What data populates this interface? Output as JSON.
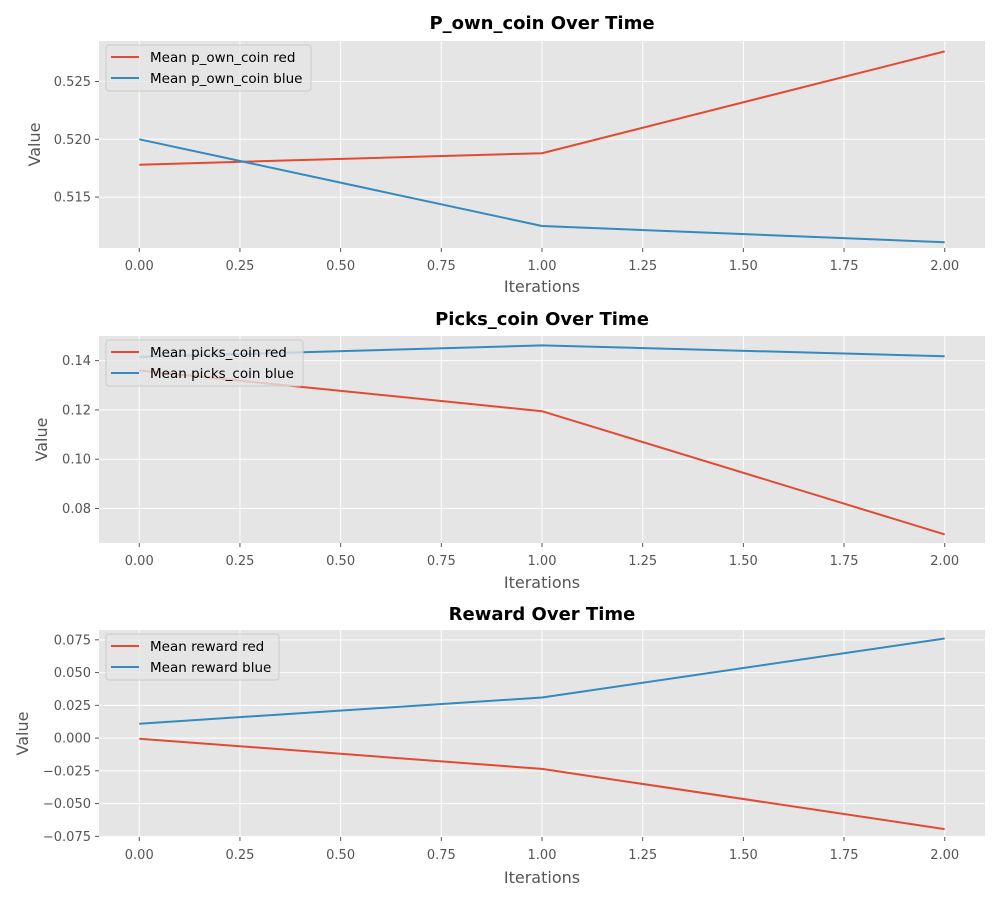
{
  "chart_data": [
    {
      "type": "line",
      "title": "P_own_coin Over Time",
      "xlabel": "Iterations",
      "ylabel": "Value",
      "x": [
        0,
        1,
        2
      ],
      "xlim": [
        -0.1,
        2.1
      ],
      "ylim": [
        0.5106,
        0.5285
      ],
      "xticks": [
        "0.00",
        "0.25",
        "0.50",
        "0.75",
        "1.00",
        "1.25",
        "1.50",
        "1.75",
        "2.00"
      ],
      "yticks": [
        "0.515",
        "0.520",
        "0.525"
      ],
      "grid": true,
      "legend_position": "top-left",
      "series": [
        {
          "name": "Mean p_own_coin red",
          "color": "#E24A33",
          "values": [
            0.5178,
            0.5188,
            0.5276
          ]
        },
        {
          "name": "Mean p_own_coin blue",
          "color": "#348ABD",
          "values": [
            0.52,
            0.5125,
            0.5111
          ]
        }
      ]
    },
    {
      "type": "line",
      "title": "Picks_coin Over Time",
      "xlabel": "Iterations",
      "ylabel": "Value",
      "x": [
        0,
        1,
        2
      ],
      "xlim": [
        -0.1,
        2.1
      ],
      "ylim": [
        0.066,
        0.15
      ],
      "xticks": [
        "0.00",
        "0.25",
        "0.50",
        "0.75",
        "1.00",
        "1.25",
        "1.50",
        "1.75",
        "2.00"
      ],
      "yticks": [
        "0.08",
        "0.10",
        "0.12",
        "0.14"
      ],
      "grid": true,
      "legend_position": "top-left",
      "series": [
        {
          "name": "Mean picks_coin red",
          "color": "#E24A33",
          "values": [
            0.136,
            0.1195,
            0.0695
          ]
        },
        {
          "name": "Mean picks_coin blue",
          "color": "#348ABD",
          "values": [
            0.1415,
            0.1462,
            0.1418
          ]
        }
      ]
    },
    {
      "type": "line",
      "title": "Reward Over Time",
      "xlabel": "Iterations",
      "ylabel": "Value",
      "x": [
        0,
        1,
        2
      ],
      "xlim": [
        -0.1,
        2.1
      ],
      "ylim": [
        -0.0755,
        0.0825
      ],
      "xticks": [
        "0.00",
        "0.25",
        "0.50",
        "0.75",
        "1.00",
        "1.25",
        "1.50",
        "1.75",
        "2.00"
      ],
      "yticks": [
        "−0.075",
        "−0.050",
        "−0.025",
        "0.000",
        "0.025",
        "0.050",
        "0.075"
      ],
      "grid": true,
      "legend_position": "top-left",
      "series": [
        {
          "name": "Mean reward red",
          "color": "#E24A33",
          "values": [
            -0.0005,
            -0.0235,
            -0.0695
          ]
        },
        {
          "name": "Mean reward blue",
          "color": "#348ABD",
          "values": [
            0.011,
            0.031,
            0.076
          ]
        }
      ]
    }
  ]
}
